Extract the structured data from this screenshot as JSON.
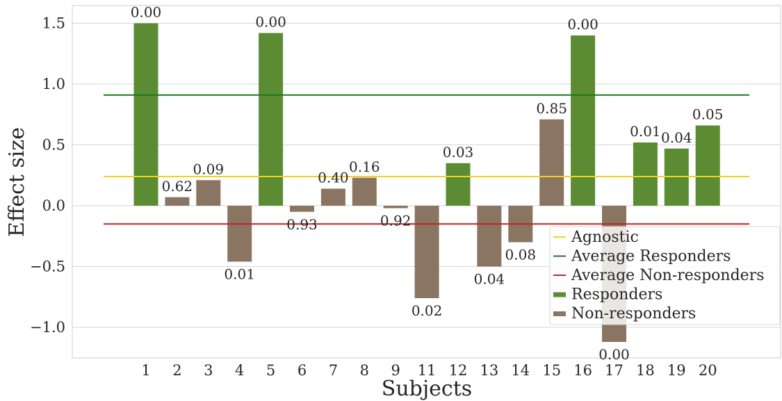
{
  "chart_data": {
    "type": "bar",
    "xlabel": "Subjects",
    "ylabel": "Effect size",
    "ylim": [
      -1.25,
      1.65
    ],
    "yticks": [
      1.5,
      1.0,
      0.5,
      0.0,
      -0.5,
      -1.0
    ],
    "ytick_labels": [
      "1.5",
      "1.0",
      "0.5",
      "0.0",
      "−0.5",
      "−1.0"
    ],
    "grid": true,
    "legend_position": "bottom-right",
    "categories": [
      "1",
      "2",
      "3",
      "4",
      "5",
      "6",
      "7",
      "8",
      "9",
      "11",
      "12",
      "13",
      "14",
      "15",
      "16",
      "17",
      "18",
      "19",
      "20"
    ],
    "values": [
      1.5,
      0.07,
      0.21,
      -0.46,
      1.42,
      -0.05,
      0.14,
      0.23,
      -0.02,
      -0.76,
      0.35,
      -0.5,
      -0.3,
      0.71,
      1.4,
      -1.12,
      0.52,
      0.47,
      0.66
    ],
    "groups": [
      "Responders",
      "Non-responders",
      "Non-responders",
      "Non-responders",
      "Responders",
      "Non-responders",
      "Non-responders",
      "Non-responders",
      "Non-responders",
      "Non-responders",
      "Responders",
      "Non-responders",
      "Non-responders",
      "Non-responders",
      "Responders",
      "Non-responders",
      "Responders",
      "Responders",
      "Responders"
    ],
    "bar_labels": [
      "0.00",
      "0.62",
      "0.09",
      "0.01",
      "0.00",
      "0.93",
      "0.40",
      "0.16",
      "0.92",
      "0.02",
      "0.03",
      "0.04",
      "0.08",
      "0.85",
      "0.00",
      "0.00",
      "0.01",
      "0.04",
      "0.05"
    ],
    "reference_lines": [
      {
        "name": "Agnostic",
        "value": 0.24,
        "color": "#f2d21b"
      },
      {
        "name": "Average Responders",
        "value": 0.91,
        "color": "#1a7a1a"
      },
      {
        "name": "Average Non-responders",
        "value": -0.15,
        "color": "#c42424"
      }
    ],
    "series_styles": [
      {
        "name": "Responders",
        "color": "#5b8c33"
      },
      {
        "name": "Non-responders",
        "color": "#8a7462"
      }
    ],
    "legend": [
      "Agnostic",
      "Average Responders",
      "Average Non-responders",
      "Responders",
      "Non-responders"
    ]
  }
}
